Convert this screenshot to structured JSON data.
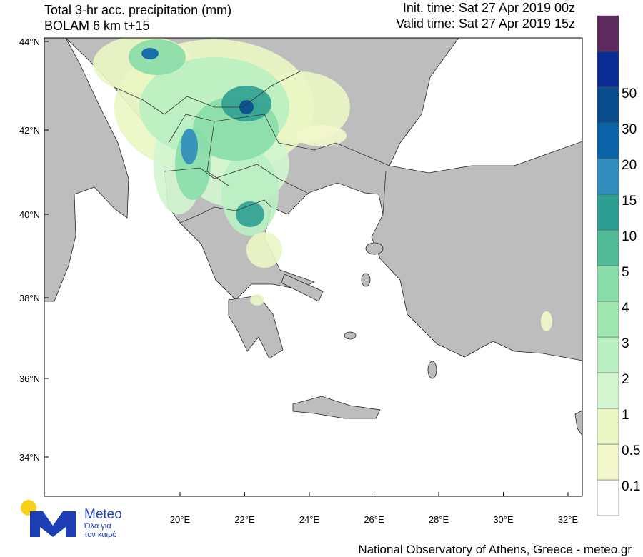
{
  "header": {
    "title": "Total 3-hr acc. precipitation (mm)",
    "model": "BOLAM 6 km t+15",
    "init_time": "Init. time: Sat 27 Apr 2019 00z",
    "valid_time": "Valid time: Sat 27 Apr 2019 15z"
  },
  "map": {
    "lat_labels": [
      "44°N",
      "42°N",
      "40°N",
      "38°N",
      "36°N",
      "34°N"
    ],
    "lon_labels": [
      "20°E",
      "22°E",
      "24°E",
      "26°E",
      "28°E",
      "30°E",
      "32°E"
    ],
    "land_color": "#bdbdbd",
    "sea_color": "#ffffff"
  },
  "colorbar": {
    "levels": [
      0.1,
      0.5,
      1,
      2,
      3,
      4,
      5,
      10,
      15,
      20,
      30,
      50
    ],
    "colors": [
      "#ffffff",
      "#f2f7cc",
      "#eaf6c4",
      "#d3f5d0",
      "#b9efc2",
      "#a0e6b0",
      "#88ddaa",
      "#4fba95",
      "#2f9e92",
      "#2f8cbd",
      "#0b63a8",
      "#0a4d8c",
      "#0b2c93",
      "#5e2b5f"
    ]
  },
  "logo": {
    "name": "Meteo",
    "tagline_1": "Όλα για",
    "tagline_2": "τον καιρό"
  },
  "footer": "National Observatory of Athens, Greece - meteo.gr"
}
